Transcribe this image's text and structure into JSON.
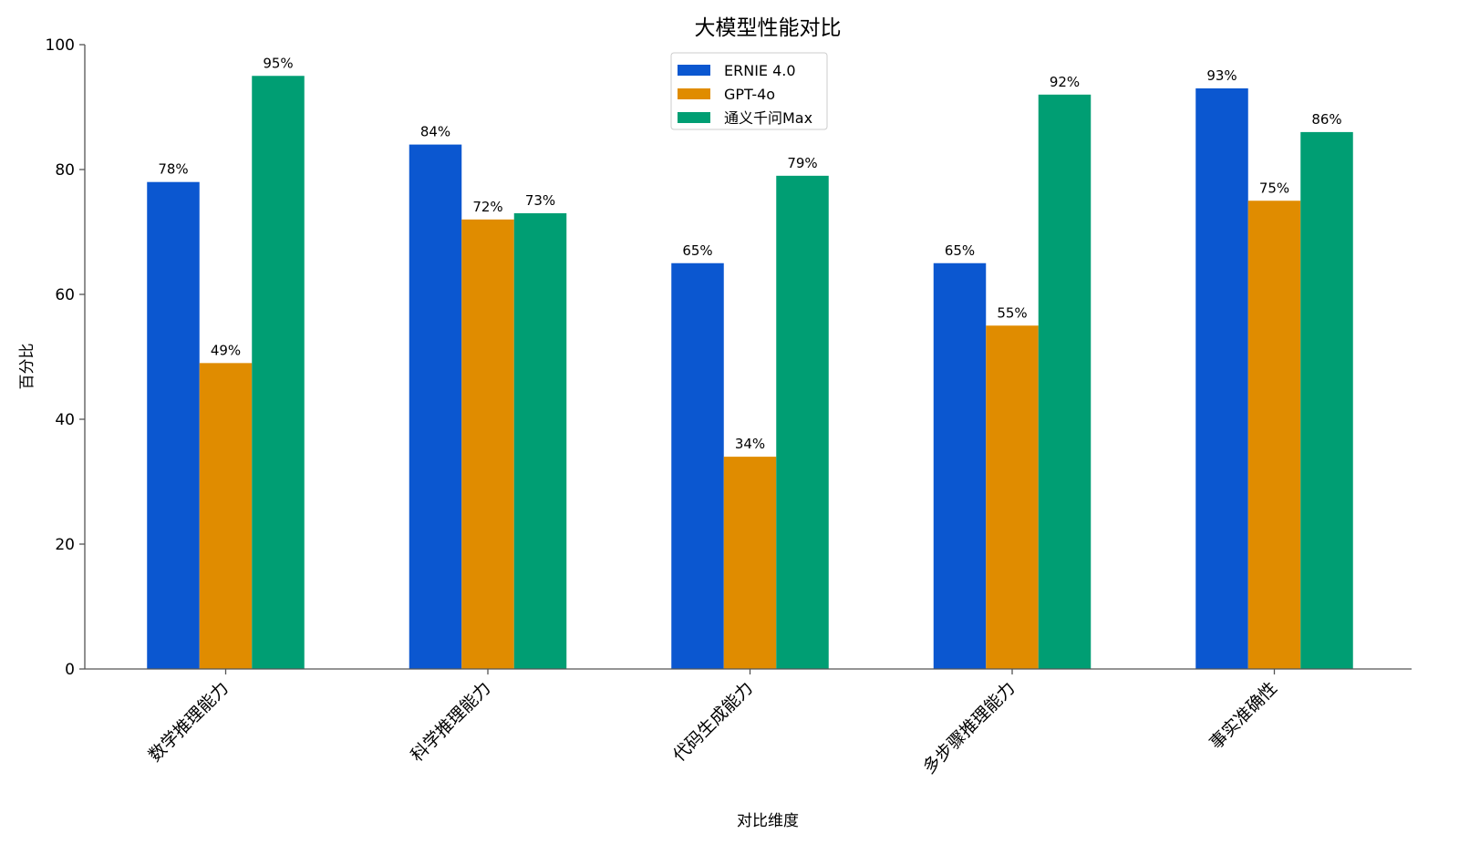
{
  "chart_data": {
    "type": "bar",
    "title": "大模型性能对比",
    "xlabel": "对比维度",
    "ylabel": "百分比",
    "ylim": [
      0,
      100
    ],
    "yticks": [
      0,
      20,
      40,
      60,
      80,
      100
    ],
    "categories": [
      "数学推理能力",
      "科学推理能力",
      "代码生成能力",
      "多步骤推理能力",
      "事实准确性"
    ],
    "series": [
      {
        "name": "ERNIE 4.0",
        "color": "#0b57d0",
        "values": [
          78,
          84,
          65,
          65,
          93
        ]
      },
      {
        "name": "GPT-4o",
        "color": "#e08c00",
        "values": [
          49,
          72,
          34,
          55,
          75
        ]
      },
      {
        "name": "通义千问Max",
        "color": "#009e73",
        "values": [
          95,
          73,
          79,
          92,
          86
        ]
      }
    ],
    "value_label_suffix": "%",
    "grid": false,
    "legend_position": "top-center"
  }
}
